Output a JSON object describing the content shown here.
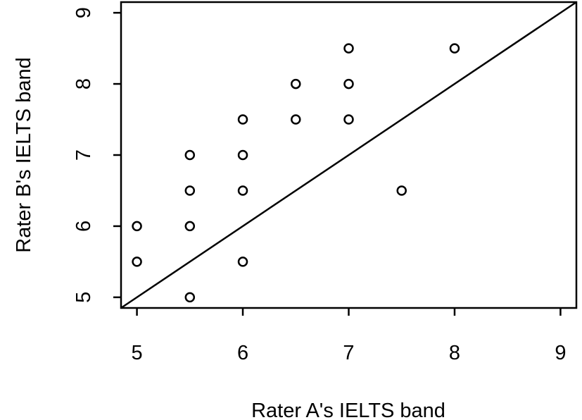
{
  "chart_data": {
    "type": "scatter",
    "title": "",
    "xlabel": "Rater A's IELTS band",
    "ylabel": "Rater B's IELTS band",
    "xlim": [
      4.85,
      9.15
    ],
    "ylim": [
      4.85,
      9.15
    ],
    "x_ticks": [
      "5",
      "6",
      "7",
      "8",
      "9"
    ],
    "y_ticks": [
      "5",
      "6",
      "7",
      "8",
      "9"
    ],
    "grid": false,
    "marker": "open-circle",
    "reference_line": {
      "type": "identity",
      "from": [
        4.85,
        4.85
      ],
      "to": [
        9.15,
        9.15
      ]
    },
    "points": [
      {
        "x": 5,
        "y": 6
      },
      {
        "x": 5,
        "y": 5.5
      },
      {
        "x": 5.5,
        "y": 7
      },
      {
        "x": 5.5,
        "y": 6.5
      },
      {
        "x": 5.5,
        "y": 6
      },
      {
        "x": 5.5,
        "y": 5
      },
      {
        "x": 6,
        "y": 7.5
      },
      {
        "x": 6,
        "y": 7
      },
      {
        "x": 6,
        "y": 6.5
      },
      {
        "x": 6,
        "y": 5.5
      },
      {
        "x": 6.5,
        "y": 8
      },
      {
        "x": 6.5,
        "y": 7.5
      },
      {
        "x": 7,
        "y": 8.5
      },
      {
        "x": 7,
        "y": 8
      },
      {
        "x": 7,
        "y": 7.5
      },
      {
        "x": 7.5,
        "y": 6.5
      },
      {
        "x": 8,
        "y": 8.5
      }
    ]
  }
}
